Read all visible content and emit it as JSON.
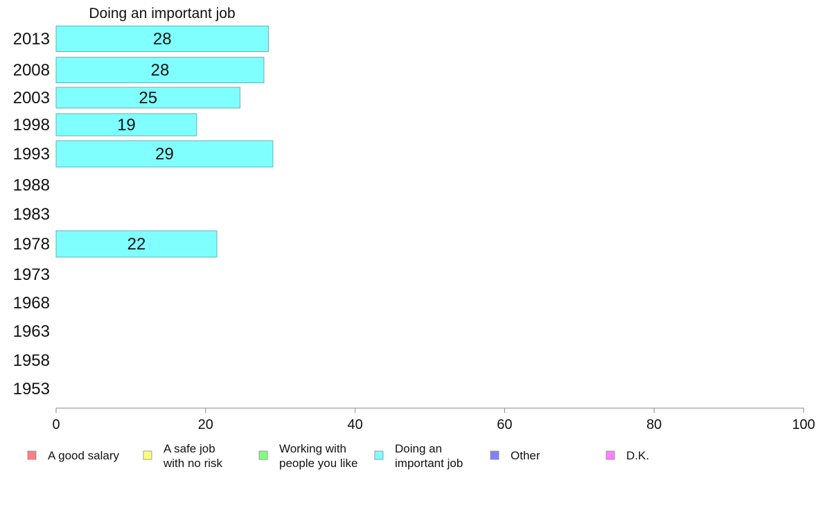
{
  "chart_data": {
    "type": "bar",
    "orientation": "horizontal",
    "title": "Doing an important job",
    "xlabel": "",
    "ylabel": "",
    "xlim": [
      0,
      100
    ],
    "xticks": [
      "0",
      "20",
      "40",
      "60",
      "80",
      "100"
    ],
    "grid": false,
    "legend_position": "bottom",
    "categories": [
      "2013",
      "2008",
      "2003",
      "1998",
      "1993",
      "1988",
      "1983",
      "1978",
      "1973",
      "1968",
      "1963",
      "1958",
      "1953"
    ],
    "series": [
      {
        "name": "Doing an important job",
        "color": "#80ffff",
        "values": [
          28.4,
          27.8,
          24.6,
          18.8,
          29,
          null,
          null,
          21.5,
          null,
          null,
          null,
          null,
          null
        ],
        "labels": [
          "28",
          "28",
          "25",
          "19",
          "29",
          null,
          null,
          "22",
          null,
          null,
          null,
          null,
          null
        ]
      }
    ],
    "legend": [
      {
        "lines": [
          "A good salary"
        ],
        "color": "#ff8080"
      },
      {
        "lines": [
          "A safe job",
          "with no risk"
        ],
        "color": "#ffff80"
      },
      {
        "lines": [
          "Working with",
          "people you like"
        ],
        "color": "#80ff80"
      },
      {
        "lines": [
          "Doing an",
          "important job"
        ],
        "color": "#80ffff"
      },
      {
        "lines": [
          "Other"
        ],
        "color": "#8080ff"
      },
      {
        "lines": [
          "D.K."
        ],
        "color": "#ff80ff"
      }
    ]
  }
}
